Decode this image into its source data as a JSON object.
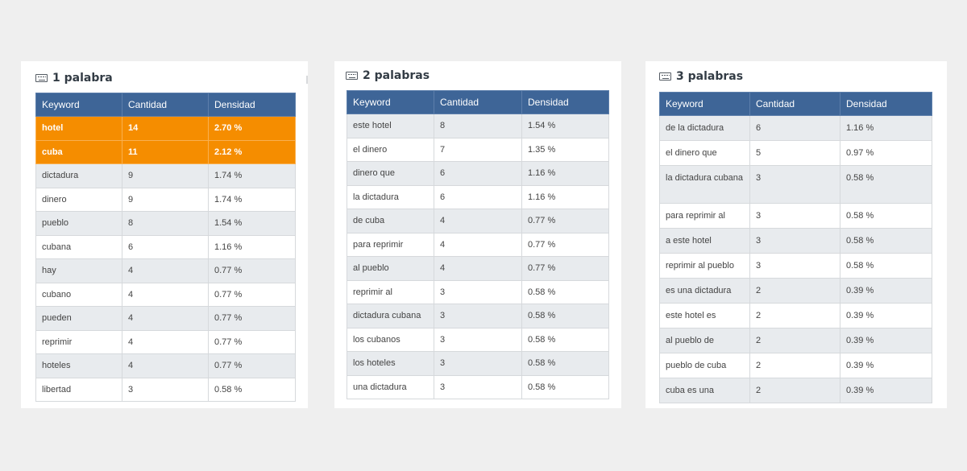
{
  "cards": [
    {
      "title": "1 palabra",
      "headers": [
        "Keyword",
        "Cantidad",
        "Densidad"
      ],
      "rows": [
        {
          "keyword": "hotel",
          "count": "14",
          "density": "2.70 %",
          "highlighted": true
        },
        {
          "keyword": "cuba",
          "count": "11",
          "density": "2.12 %",
          "highlighted": true
        },
        {
          "keyword": "dictadura",
          "count": "9",
          "density": "1.74 %"
        },
        {
          "keyword": "dinero",
          "count": "9",
          "density": "1.74 %"
        },
        {
          "keyword": "pueblo",
          "count": "8",
          "density": "1.54 %"
        },
        {
          "keyword": "cubana",
          "count": "6",
          "density": "1.16 %"
        },
        {
          "keyword": "hay",
          "count": "4",
          "density": "0.77 %"
        },
        {
          "keyword": "cubano",
          "count": "4",
          "density": "0.77 %"
        },
        {
          "keyword": "pueden",
          "count": "4",
          "density": "0.77 %"
        },
        {
          "keyword": "reprimir",
          "count": "4",
          "density": "0.77 %"
        },
        {
          "keyword": "hoteles",
          "count": "4",
          "density": "0.77 %"
        },
        {
          "keyword": "libertad",
          "count": "3",
          "density": "0.58 %"
        }
      ]
    },
    {
      "title": "2 palabras",
      "headers": [
        "Keyword",
        "Cantidad",
        "Densidad"
      ],
      "rows": [
        {
          "keyword": "este hotel",
          "count": "8",
          "density": "1.54 %"
        },
        {
          "keyword": "el dinero",
          "count": "7",
          "density": "1.35 %"
        },
        {
          "keyword": "dinero que",
          "count": "6",
          "density": "1.16 %"
        },
        {
          "keyword": "la dictadura",
          "count": "6",
          "density": "1.16 %"
        },
        {
          "keyword": "de cuba",
          "count": "4",
          "density": "0.77 %"
        },
        {
          "keyword": "para reprimir",
          "count": "4",
          "density": "0.77 %"
        },
        {
          "keyword": "al pueblo",
          "count": "4",
          "density": "0.77 %"
        },
        {
          "keyword": "reprimir al",
          "count": "3",
          "density": "0.58 %"
        },
        {
          "keyword": "dictadura cubana",
          "count": "3",
          "density": "0.58 %"
        },
        {
          "keyword": "los cubanos",
          "count": "3",
          "density": "0.58 %"
        },
        {
          "keyword": "los hoteles",
          "count": "3",
          "density": "0.58 %"
        },
        {
          "keyword": "una dictadura",
          "count": "3",
          "density": "0.58 %"
        }
      ]
    },
    {
      "title": "3 palabras",
      "headers": [
        "Keyword",
        "Cantidad",
        "Densidad"
      ],
      "rows": [
        {
          "keyword": "de la dictadura",
          "count": "6",
          "density": "1.16 %"
        },
        {
          "keyword": "el dinero que",
          "count": "5",
          "density": "0.97 %"
        },
        {
          "keyword": "la dictadura cubana",
          "count": "3",
          "density": "0.58 %"
        },
        {
          "keyword": "para reprimir al",
          "count": "3",
          "density": "0.58 %"
        },
        {
          "keyword": "a este hotel",
          "count": "3",
          "density": "0.58 %"
        },
        {
          "keyword": "reprimir al pueblo",
          "count": "3",
          "density": "0.58 %"
        },
        {
          "keyword": "es una dictadura",
          "count": "2",
          "density": "0.39 %"
        },
        {
          "keyword": "este hotel es",
          "count": "2",
          "density": "0.39 %"
        },
        {
          "keyword": "al pueblo de",
          "count": "2",
          "density": "0.39 %"
        },
        {
          "keyword": "pueblo de cuba",
          "count": "2",
          "density": "0.39 %"
        },
        {
          "keyword": "cuba es una",
          "count": "2",
          "density": "0.39 %"
        }
      ]
    }
  ],
  "colors": {
    "header_bg": "#3e6597",
    "highlight_bg": "#f58d00",
    "stripe_bg": "#e8ebee",
    "page_bg": "#efefef"
  },
  "icons": {
    "title_icon": "keyboard-icon"
  }
}
